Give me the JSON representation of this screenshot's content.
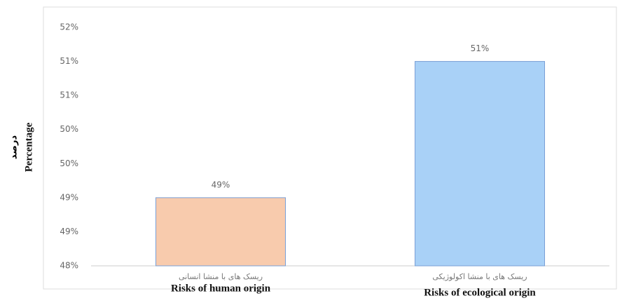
{
  "chart_data": {
    "type": "bar",
    "ylabel": "Percentage",
    "ylabel_local": "درصد",
    "categories": [
      "Risks of human origin",
      "Risks of ecological origin"
    ],
    "categories_local": [
      "ریسک های با منشا انسانی",
      "ریسک های با منشا اکولوژیکی"
    ],
    "values": [
      49,
      51
    ],
    "value_labels": [
      "49%",
      "51%"
    ],
    "colors": [
      "#f8cbad",
      "#a9d1f7"
    ],
    "ylim": [
      48,
      51.5
    ],
    "yticks": [
      {
        "value": 48,
        "label": "48%"
      },
      {
        "value": 48.5,
        "label": "49%"
      },
      {
        "value": 49,
        "label": "49%"
      },
      {
        "value": 49.5,
        "label": "50%"
      },
      {
        "value": 50,
        "label": "50%"
      },
      {
        "value": 50.5,
        "label": "51%"
      },
      {
        "value": 51,
        "label": "51%"
      },
      {
        "value": 51.5,
        "label": "52%"
      }
    ],
    "grid": false
  }
}
